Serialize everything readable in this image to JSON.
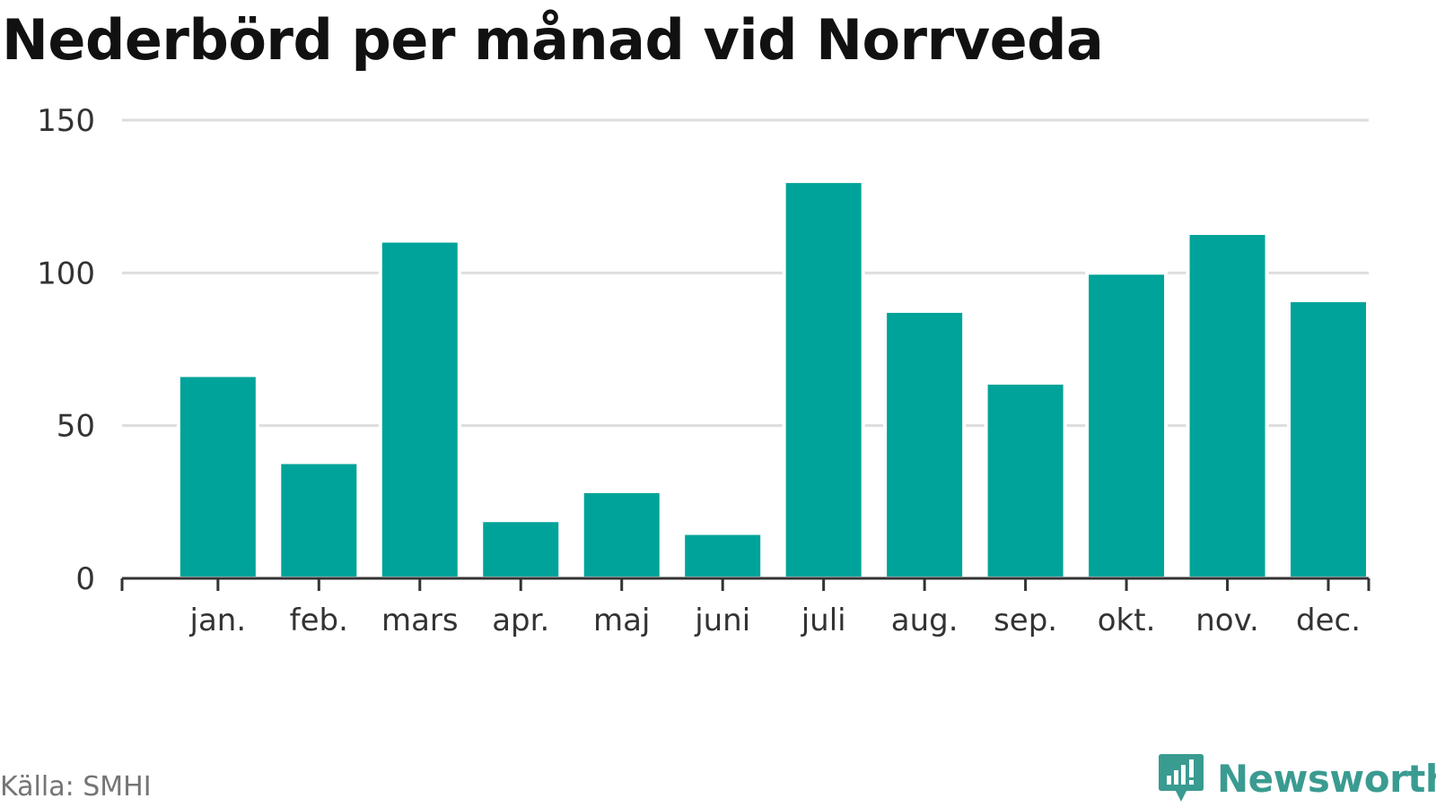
{
  "title": "Nederbörd per månad vid Norrveda",
  "source": "Källa: SMHI",
  "brand": {
    "name": "Newsworthy",
    "icon": "newsworthy-logo-icon",
    "color": "#3a9b91"
  },
  "colors": {
    "bar": "#00a399",
    "grid": "#dddddd",
    "axis": "#333333"
  },
  "chart_data": {
    "type": "bar",
    "title": "Nederbörd per månad vid Norrveda",
    "xlabel": "",
    "ylabel": "",
    "categories": [
      "jan.",
      "feb.",
      "mars",
      "apr.",
      "maj",
      "juni",
      "juli",
      "aug.",
      "sep.",
      "okt.",
      "nov.",
      "dec."
    ],
    "values": [
      66.5,
      38.0,
      110.5,
      19.0,
      28.5,
      14.8,
      130.0,
      87.5,
      64.0,
      100.0,
      113.0,
      91.0
    ],
    "ylim": [
      0,
      150
    ],
    "yticks": [
      0,
      50,
      100,
      150
    ],
    "grid": true,
    "legend": "none"
  }
}
